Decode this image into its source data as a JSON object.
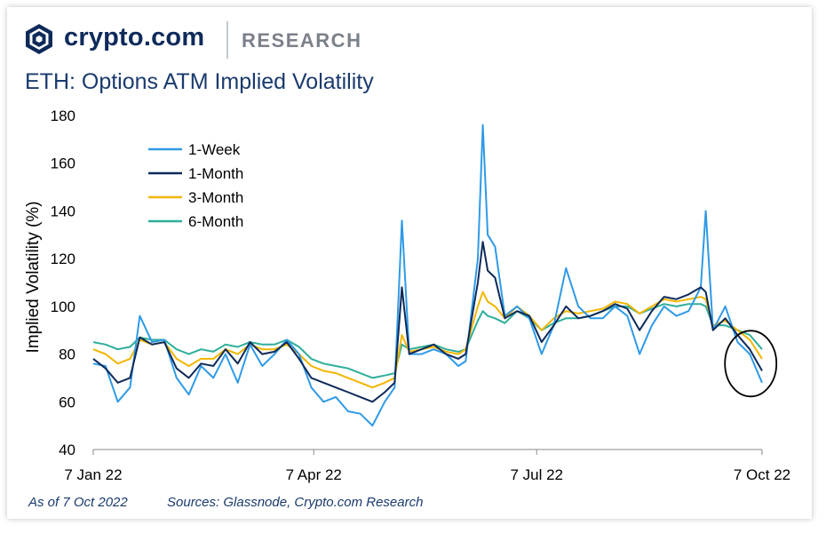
{
  "header": {
    "brand": "crypto.com",
    "section": "RESEARCH",
    "title": "ETH: Options ATM Implied Volatility"
  },
  "footer": {
    "as_of": "As of 7 Oct 2022",
    "sources": "Sources: Glassnode, Crypto.com Research"
  },
  "colors": {
    "week": "#2f9ae6",
    "month": "#0e2a5a",
    "three": "#f2b600",
    "six": "#2eae9a",
    "circle": "#000000"
  },
  "chart_data": {
    "type": "line",
    "title": "ETH: Options ATM Implied Volatility",
    "ylabel": "Implied Volatility (%)",
    "xlabel": "",
    "ylim": [
      40,
      180
    ],
    "yticks": [
      40,
      60,
      80,
      100,
      120,
      140,
      160,
      180
    ],
    "x_range": [
      "2022-01-07",
      "2022-10-07"
    ],
    "xticks": [
      {
        "date": "2022-01-07",
        "label": "7 Jan 22"
      },
      {
        "date": "2022-04-07",
        "label": "7 Apr 22"
      },
      {
        "date": "2022-07-07",
        "label": "7 Jul 22"
      },
      {
        "date": "2022-10-07",
        "label": "7 Oct 22"
      }
    ],
    "legend": "top-left",
    "grid": false,
    "annotation": "circle around early October 2022 values",
    "series": [
      {
        "name": "1-Week",
        "points": [
          [
            "2022-01-07",
            76
          ],
          [
            "2022-01-12",
            75
          ],
          [
            "2022-01-17",
            60
          ],
          [
            "2022-01-22",
            66
          ],
          [
            "2022-01-26",
            96
          ],
          [
            "2022-01-31",
            85
          ],
          [
            "2022-02-05",
            86
          ],
          [
            "2022-02-10",
            70
          ],
          [
            "2022-02-15",
            63
          ],
          [
            "2022-02-20",
            75
          ],
          [
            "2022-02-25",
            70
          ],
          [
            "2022-03-02",
            80
          ],
          [
            "2022-03-07",
            68
          ],
          [
            "2022-03-12",
            84
          ],
          [
            "2022-03-17",
            75
          ],
          [
            "2022-03-22",
            80
          ],
          [
            "2022-03-27",
            86
          ],
          [
            "2022-04-01",
            80
          ],
          [
            "2022-04-06",
            66
          ],
          [
            "2022-04-11",
            60
          ],
          [
            "2022-04-16",
            62
          ],
          [
            "2022-04-21",
            56
          ],
          [
            "2022-04-26",
            55
          ],
          [
            "2022-05-01",
            50
          ],
          [
            "2022-05-06",
            60
          ],
          [
            "2022-05-10",
            66
          ],
          [
            "2022-05-13",
            136
          ],
          [
            "2022-05-16",
            80
          ],
          [
            "2022-05-21",
            80
          ],
          [
            "2022-05-26",
            82
          ],
          [
            "2022-05-31",
            80
          ],
          [
            "2022-06-05",
            75
          ],
          [
            "2022-06-08",
            77
          ],
          [
            "2022-06-13",
            120
          ],
          [
            "2022-06-15",
            176
          ],
          [
            "2022-06-17",
            130
          ],
          [
            "2022-06-20",
            125
          ],
          [
            "2022-06-24",
            96
          ],
          [
            "2022-06-29",
            100
          ],
          [
            "2022-07-04",
            95
          ],
          [
            "2022-07-09",
            80
          ],
          [
            "2022-07-14",
            92
          ],
          [
            "2022-07-19",
            116
          ],
          [
            "2022-07-24",
            100
          ],
          [
            "2022-07-29",
            95
          ],
          [
            "2022-08-03",
            95
          ],
          [
            "2022-08-08",
            100
          ],
          [
            "2022-08-13",
            96
          ],
          [
            "2022-08-18",
            80
          ],
          [
            "2022-08-23",
            92
          ],
          [
            "2022-08-28",
            100
          ],
          [
            "2022-09-02",
            96
          ],
          [
            "2022-09-07",
            98
          ],
          [
            "2022-09-12",
            108
          ],
          [
            "2022-09-14",
            140
          ],
          [
            "2022-09-17",
            90
          ],
          [
            "2022-09-22",
            100
          ],
          [
            "2022-09-27",
            85
          ],
          [
            "2022-10-02",
            80
          ],
          [
            "2022-10-07",
            68
          ]
        ]
      },
      {
        "name": "1-Month",
        "points": [
          [
            "2022-01-07",
            78
          ],
          [
            "2022-01-12",
            74
          ],
          [
            "2022-01-17",
            68
          ],
          [
            "2022-01-22",
            70
          ],
          [
            "2022-01-26",
            87
          ],
          [
            "2022-01-31",
            84
          ],
          [
            "2022-02-05",
            85
          ],
          [
            "2022-02-10",
            74
          ],
          [
            "2022-02-15",
            70
          ],
          [
            "2022-02-20",
            76
          ],
          [
            "2022-02-25",
            75
          ],
          [
            "2022-03-02",
            82
          ],
          [
            "2022-03-07",
            76
          ],
          [
            "2022-03-12",
            85
          ],
          [
            "2022-03-17",
            80
          ],
          [
            "2022-03-22",
            81
          ],
          [
            "2022-03-27",
            85
          ],
          [
            "2022-04-01",
            78
          ],
          [
            "2022-04-06",
            70
          ],
          [
            "2022-04-11",
            68
          ],
          [
            "2022-04-16",
            66
          ],
          [
            "2022-04-21",
            64
          ],
          [
            "2022-04-26",
            62
          ],
          [
            "2022-05-01",
            60
          ],
          [
            "2022-05-06",
            64
          ],
          [
            "2022-05-10",
            68
          ],
          [
            "2022-05-13",
            108
          ],
          [
            "2022-05-16",
            80
          ],
          [
            "2022-05-21",
            82
          ],
          [
            "2022-05-26",
            84
          ],
          [
            "2022-05-31",
            80
          ],
          [
            "2022-06-05",
            78
          ],
          [
            "2022-06-08",
            80
          ],
          [
            "2022-06-13",
            110
          ],
          [
            "2022-06-15",
            127
          ],
          [
            "2022-06-17",
            115
          ],
          [
            "2022-06-20",
            112
          ],
          [
            "2022-06-24",
            95
          ],
          [
            "2022-06-29",
            98
          ],
          [
            "2022-07-04",
            96
          ],
          [
            "2022-07-09",
            85
          ],
          [
            "2022-07-14",
            92
          ],
          [
            "2022-07-19",
            100
          ],
          [
            "2022-07-24",
            95
          ],
          [
            "2022-07-29",
            96
          ],
          [
            "2022-08-03",
            98
          ],
          [
            "2022-08-08",
            101
          ],
          [
            "2022-08-13",
            99
          ],
          [
            "2022-08-18",
            90
          ],
          [
            "2022-08-23",
            98
          ],
          [
            "2022-08-28",
            104
          ],
          [
            "2022-09-02",
            103
          ],
          [
            "2022-09-07",
            105
          ],
          [
            "2022-09-12",
            108
          ],
          [
            "2022-09-14",
            106
          ],
          [
            "2022-09-17",
            90
          ],
          [
            "2022-09-22",
            95
          ],
          [
            "2022-09-27",
            88
          ],
          [
            "2022-10-02",
            82
          ],
          [
            "2022-10-07",
            73
          ]
        ]
      },
      {
        "name": "3-Month",
        "points": [
          [
            "2022-01-07",
            82
          ],
          [
            "2022-01-12",
            80
          ],
          [
            "2022-01-17",
            76
          ],
          [
            "2022-01-22",
            78
          ],
          [
            "2022-01-26",
            86
          ],
          [
            "2022-01-31",
            84
          ],
          [
            "2022-02-05",
            85
          ],
          [
            "2022-02-10",
            78
          ],
          [
            "2022-02-15",
            75
          ],
          [
            "2022-02-20",
            78
          ],
          [
            "2022-02-25",
            78
          ],
          [
            "2022-03-02",
            82
          ],
          [
            "2022-03-07",
            80
          ],
          [
            "2022-03-12",
            84
          ],
          [
            "2022-03-17",
            82
          ],
          [
            "2022-03-22",
            82
          ],
          [
            "2022-03-27",
            84
          ],
          [
            "2022-04-01",
            80
          ],
          [
            "2022-04-06",
            75
          ],
          [
            "2022-04-11",
            73
          ],
          [
            "2022-04-16",
            72
          ],
          [
            "2022-04-21",
            70
          ],
          [
            "2022-04-26",
            68
          ],
          [
            "2022-05-01",
            66
          ],
          [
            "2022-05-06",
            68
          ],
          [
            "2022-05-10",
            70
          ],
          [
            "2022-05-13",
            88
          ],
          [
            "2022-05-16",
            81
          ],
          [
            "2022-05-21",
            82
          ],
          [
            "2022-05-26",
            83
          ],
          [
            "2022-05-31",
            81
          ],
          [
            "2022-06-05",
            80
          ],
          [
            "2022-06-08",
            82
          ],
          [
            "2022-06-13",
            100
          ],
          [
            "2022-06-15",
            106
          ],
          [
            "2022-06-17",
            102
          ],
          [
            "2022-06-20",
            100
          ],
          [
            "2022-06-24",
            95
          ],
          [
            "2022-06-29",
            100
          ],
          [
            "2022-07-04",
            96
          ],
          [
            "2022-07-09",
            90
          ],
          [
            "2022-07-14",
            95
          ],
          [
            "2022-07-19",
            98
          ],
          [
            "2022-07-24",
            97
          ],
          [
            "2022-07-29",
            98
          ],
          [
            "2022-08-03",
            99
          ],
          [
            "2022-08-08",
            102
          ],
          [
            "2022-08-13",
            101
          ],
          [
            "2022-08-18",
            97
          ],
          [
            "2022-08-23",
            100
          ],
          [
            "2022-08-28",
            103
          ],
          [
            "2022-09-02",
            102
          ],
          [
            "2022-09-07",
            103
          ],
          [
            "2022-09-12",
            104
          ],
          [
            "2022-09-14",
            103
          ],
          [
            "2022-09-17",
            92
          ],
          [
            "2022-09-22",
            94
          ],
          [
            "2022-09-27",
            90
          ],
          [
            "2022-10-02",
            86
          ],
          [
            "2022-10-07",
            78
          ]
        ]
      },
      {
        "name": "6-Month",
        "points": [
          [
            "2022-01-07",
            85
          ],
          [
            "2022-01-12",
            84
          ],
          [
            "2022-01-17",
            82
          ],
          [
            "2022-01-22",
            83
          ],
          [
            "2022-01-26",
            87
          ],
          [
            "2022-01-31",
            86
          ],
          [
            "2022-02-05",
            86
          ],
          [
            "2022-02-10",
            82
          ],
          [
            "2022-02-15",
            80
          ],
          [
            "2022-02-20",
            82
          ],
          [
            "2022-02-25",
            81
          ],
          [
            "2022-03-02",
            84
          ],
          [
            "2022-03-07",
            83
          ],
          [
            "2022-03-12",
            85
          ],
          [
            "2022-03-17",
            84
          ],
          [
            "2022-03-22",
            84
          ],
          [
            "2022-03-27",
            86
          ],
          [
            "2022-04-01",
            83
          ],
          [
            "2022-04-06",
            78
          ],
          [
            "2022-04-11",
            76
          ],
          [
            "2022-04-16",
            75
          ],
          [
            "2022-04-21",
            74
          ],
          [
            "2022-04-26",
            72
          ],
          [
            "2022-05-01",
            70
          ],
          [
            "2022-05-06",
            71
          ],
          [
            "2022-05-10",
            72
          ],
          [
            "2022-05-13",
            84
          ],
          [
            "2022-05-16",
            82
          ],
          [
            "2022-05-21",
            83
          ],
          [
            "2022-05-26",
            84
          ],
          [
            "2022-05-31",
            82
          ],
          [
            "2022-06-05",
            81
          ],
          [
            "2022-06-08",
            82
          ],
          [
            "2022-06-13",
            94
          ],
          [
            "2022-06-15",
            98
          ],
          [
            "2022-06-17",
            96
          ],
          [
            "2022-06-20",
            95
          ],
          [
            "2022-06-24",
            93
          ],
          [
            "2022-06-29",
            98
          ],
          [
            "2022-07-04",
            95
          ],
          [
            "2022-07-09",
            90
          ],
          [
            "2022-07-14",
            93
          ],
          [
            "2022-07-19",
            95
          ],
          [
            "2022-07-24",
            95
          ],
          [
            "2022-07-29",
            96
          ],
          [
            "2022-08-03",
            98
          ],
          [
            "2022-08-08",
            100
          ],
          [
            "2022-08-13",
            100
          ],
          [
            "2022-08-18",
            97
          ],
          [
            "2022-08-23",
            99
          ],
          [
            "2022-08-28",
            101
          ],
          [
            "2022-09-02",
            100
          ],
          [
            "2022-09-07",
            101
          ],
          [
            "2022-09-12",
            101
          ],
          [
            "2022-09-14",
            100
          ],
          [
            "2022-09-17",
            92
          ],
          [
            "2022-09-22",
            92
          ],
          [
            "2022-09-27",
            90
          ],
          [
            "2022-10-02",
            88
          ],
          [
            "2022-10-07",
            82
          ]
        ]
      }
    ]
  }
}
